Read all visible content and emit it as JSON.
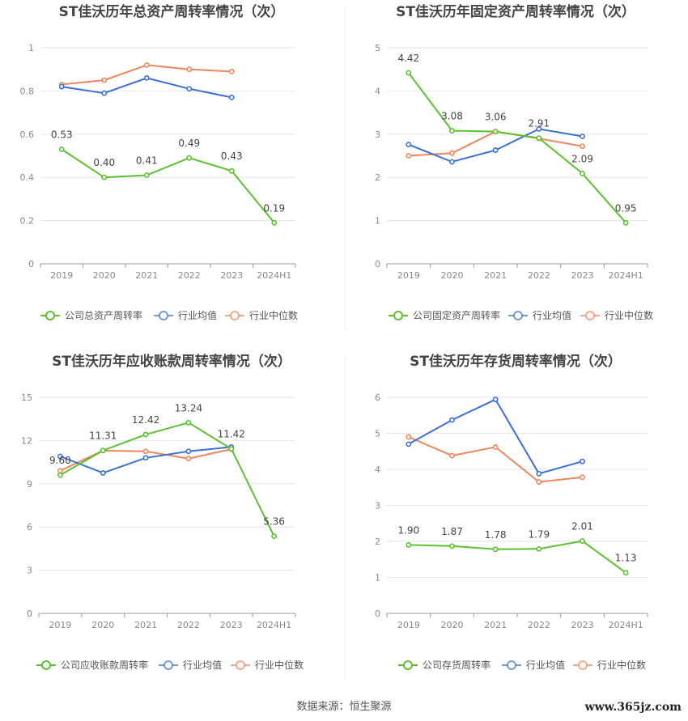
{
  "footer": {
    "source": "数据来源：恒生聚源",
    "watermark": "www.365jz.com"
  },
  "colors": {
    "company": "#5cc12f",
    "avg": "#3b6fd8",
    "median": "#f0855a",
    "grid": "#e6e6ee",
    "axis": "#999999"
  },
  "chart_data": [
    {
      "type": "line",
      "title": "ST佳沃历年总资产周转率情况（次）",
      "categories": [
        "2019",
        "2020",
        "2021",
        "2022",
        "2023",
        "2024H1"
      ],
      "ylim": [
        0,
        1
      ],
      "yticks": [
        "0",
        "0.2",
        "0.4",
        "0.6",
        "0.8",
        "1"
      ],
      "ytick_values": [
        0,
        0.2,
        0.4,
        0.6,
        0.8,
        1
      ],
      "series": [
        {
          "name": "公司总资产周转率",
          "values": [
            0.53,
            0.4,
            0.41,
            0.49,
            0.43,
            0.19
          ],
          "labels": [
            "0.53",
            "0.40",
            "0.41",
            "0.49",
            "0.43",
            "0.19"
          ]
        },
        {
          "name": "行业均值",
          "values": [
            0.82,
            0.79,
            0.86,
            0.81,
            0.77,
            null
          ]
        },
        {
          "name": "行业中位数",
          "values": [
            0.83,
            0.85,
            0.92,
            0.9,
            0.89,
            null
          ]
        }
      ]
    },
    {
      "type": "line",
      "title": "ST佳沃历年固定资产周转率情况（次）",
      "categories": [
        "2019",
        "2020",
        "2021",
        "2022",
        "2023",
        "2024H1"
      ],
      "ylim": [
        0,
        5
      ],
      "yticks": [
        "0",
        "1",
        "2",
        "3",
        "4",
        "5"
      ],
      "ytick_values": [
        0,
        1,
        2,
        3,
        4,
        5
      ],
      "series": [
        {
          "name": "公司固定资产周转率",
          "values": [
            4.42,
            3.08,
            3.06,
            2.91,
            2.09,
            0.95
          ],
          "labels": [
            "4.42",
            "3.08",
            "3.06",
            "2.91",
            "2.09",
            "0.95"
          ]
        },
        {
          "name": "行业均值",
          "values": [
            2.76,
            2.36,
            2.63,
            3.12,
            2.95,
            null
          ]
        },
        {
          "name": "行业中位数",
          "values": [
            2.5,
            2.56,
            3.06,
            2.9,
            2.72,
            null
          ]
        }
      ]
    },
    {
      "type": "line",
      "title": "ST佳沃历年应收账款周转率情况（次）",
      "categories": [
        "2019",
        "2020",
        "2021",
        "2022",
        "2023",
        "2024H1"
      ],
      "ylim": [
        0,
        15
      ],
      "yticks": [
        "0",
        "3",
        "6",
        "9",
        "12",
        "15"
      ],
      "ytick_values": [
        0,
        3,
        6,
        9,
        12,
        15
      ],
      "series": [
        {
          "name": "公司应收账款周转率",
          "values": [
            9.6,
            11.31,
            12.42,
            13.24,
            11.42,
            5.36
          ],
          "labels": [
            "9.60",
            "11.31",
            "12.42",
            "13.24",
            "11.42",
            "5.36"
          ]
        },
        {
          "name": "行业均值",
          "values": [
            10.9,
            9.75,
            10.8,
            11.25,
            11.55,
            null
          ]
        },
        {
          "name": "行业中位数",
          "values": [
            9.9,
            11.3,
            11.25,
            10.75,
            11.4,
            null
          ]
        }
      ]
    },
    {
      "type": "line",
      "title": "ST佳沃历年存货周转率情况（次）",
      "categories": [
        "2019",
        "2020",
        "2021",
        "2022",
        "2023",
        "2024H1"
      ],
      "ylim": [
        0,
        6
      ],
      "yticks": [
        "0",
        "1",
        "2",
        "3",
        "4",
        "5",
        "6"
      ],
      "ytick_values": [
        0,
        1,
        2,
        3,
        4,
        5,
        6
      ],
      "series": [
        {
          "name": "公司存货周转率",
          "values": [
            1.9,
            1.87,
            1.78,
            1.79,
            2.01,
            1.13
          ],
          "labels": [
            "1.90",
            "1.87",
            "1.78",
            "1.79",
            "2.01",
            "1.13"
          ]
        },
        {
          "name": "行业均值",
          "values": [
            4.7,
            5.37,
            5.94,
            3.88,
            4.22,
            null
          ]
        },
        {
          "name": "行业中位数",
          "values": [
            4.9,
            4.38,
            4.62,
            3.65,
            3.78,
            null
          ]
        }
      ]
    }
  ]
}
